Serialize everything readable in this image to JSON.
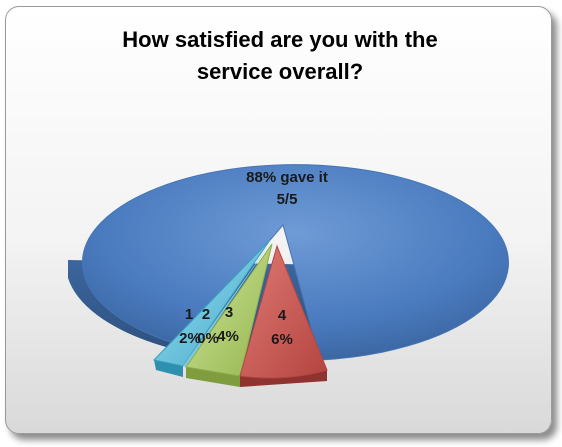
{
  "chart_data": {
    "type": "pie",
    "title_lines": [
      "How satisfied are you with the",
      "service overall?"
    ],
    "slices": [
      {
        "category": "88% gave it",
        "value": 88,
        "label_lines": [
          "88% gave it",
          "5/5"
        ],
        "color": "#4f81bd"
      },
      {
        "category": "1",
        "value": 2,
        "label_lines": [
          "1",
          "2%"
        ],
        "color": "#4bacc6"
      },
      {
        "category": "2",
        "value": 0,
        "label_lines": [
          "2",
          "0%"
        ],
        "color": "#4bacc6"
      },
      {
        "category": "3",
        "value": 4,
        "label_lines": [
          "3",
          "4%"
        ],
        "color": "#9bbb59"
      },
      {
        "category": "4",
        "value": 6,
        "label_lines": [
          "4",
          "6%"
        ],
        "color": "#c0504d"
      }
    ],
    "style": "3d-exploded",
    "legend": "none"
  }
}
